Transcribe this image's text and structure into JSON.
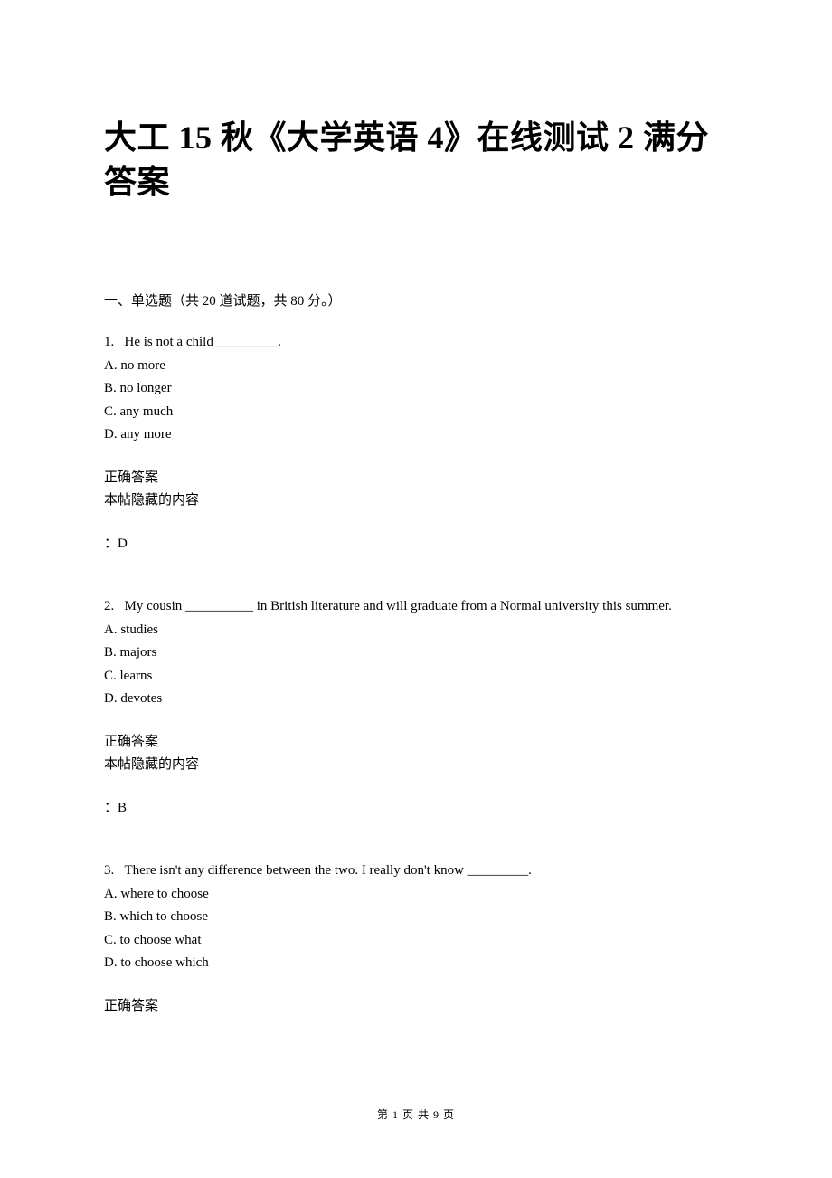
{
  "title": "大工 15 秋《大学英语 4》在线测试 2  满分答案",
  "section_header": "一、单选题（共  20  道试题，共  80  分。）",
  "questions": [
    {
      "num": "1.",
      "text": "He is not a child _________.",
      "options": [
        "A. no more",
        "B. no longer",
        "C. any much",
        "D. any more"
      ],
      "answer_label": "正确答案",
      "hidden_label": "本帖隐藏的内容",
      "answer": "：D"
    },
    {
      "num": "2.",
      "text": "My cousin __________ in British literature and will graduate from a Normal university this summer.",
      "options": [
        "A. studies",
        "B. majors",
        "C. learns",
        "D. devotes"
      ],
      "answer_label": "正确答案",
      "hidden_label": "本帖隐藏的内容",
      "answer": "：B"
    },
    {
      "num": "3.",
      "text": "There isn't any difference between the two. I really don't know _________.",
      "options": [
        "A. where to choose",
        "B. which to choose",
        "C. to choose what",
        "D. to choose which"
      ],
      "answer_label": "正确答案",
      "hidden_label": "",
      "answer": ""
    }
  ],
  "footer": "第 1 页 共 9 页"
}
